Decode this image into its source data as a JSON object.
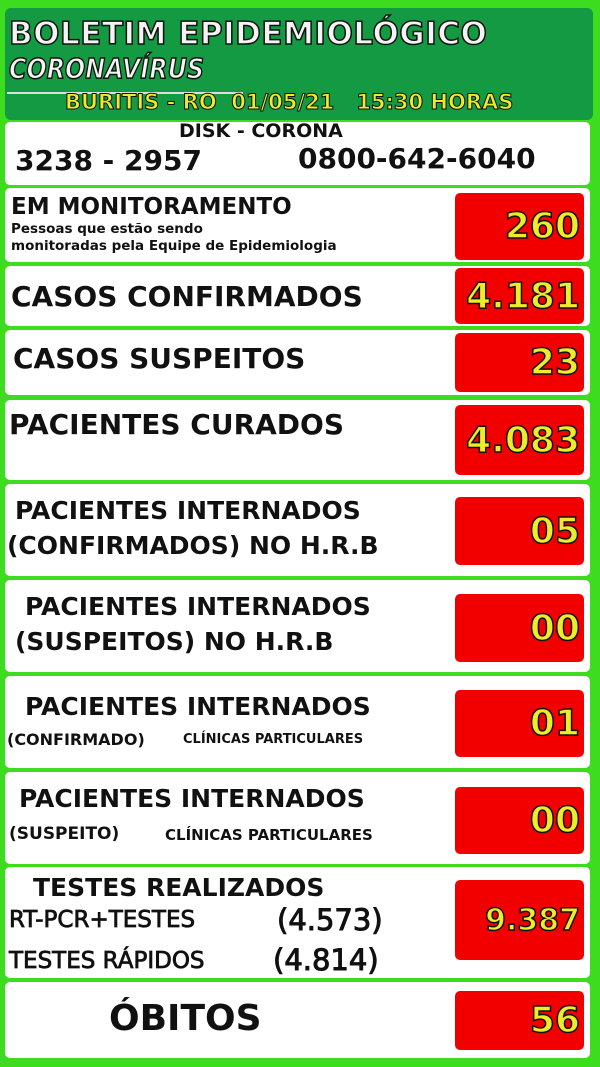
{
  "header": {
    "title": "BOLETIM EPIDEMIOLÓGICO",
    "subtitle": "CORONAVÍRUS",
    "location_date": "BURITIS - RO  01/05/21   15:30 HORAS"
  },
  "disk": {
    "label": "DISK - CORONA",
    "phone1": "3238 - 2957",
    "phone2": "0800-642-6040"
  },
  "colors": {
    "outer_green": "#3ddc1f",
    "header_green": "#149a42",
    "value_box": "#f20000",
    "value_text": "#ecec2a"
  },
  "rows": [
    {
      "title": "EM MONITORAMENTO",
      "sub1": "Pessoas que estão sendo",
      "sub2": "monitoradas pela Equipe de Epidemiologia",
      "value": "260"
    },
    {
      "title": "CASOS CONFIRMADOS",
      "value": "4.181"
    },
    {
      "title": "CASOS SUSPEITOS",
      "value": "23"
    },
    {
      "title": "PACIENTES CURADOS",
      "value": "4.083"
    },
    {
      "title": "PACIENTES INTERNADOS",
      "sub1": "(CONFIRMADOS) NO H.R.B",
      "value": "05"
    },
    {
      "title": "PACIENTES INTERNADOS",
      "sub1": "(SUSPEITOS) NO H.R.B",
      "value": "00"
    },
    {
      "title": "PACIENTES INTERNADOS",
      "sub1a": "(CONFIRMADO)",
      "sub1b": "CLÍNICAS PARTICULARES",
      "value": "01"
    },
    {
      "title": "PACIENTES INTERNADOS",
      "sub1a": "(SUSPEITO)",
      "sub1b": "CLÍNICAS PARTICULARES",
      "value": "00"
    },
    {
      "title": "TESTES REALIZADOS",
      "sub1": "RT-PCR+TESTES",
      "sub1v": "(4.573)",
      "sub2": "TESTES RÁPIDOS",
      "sub2v": "(4.814)",
      "value": "9.387"
    },
    {
      "title": "ÓBITOS",
      "value": "56"
    }
  ]
}
